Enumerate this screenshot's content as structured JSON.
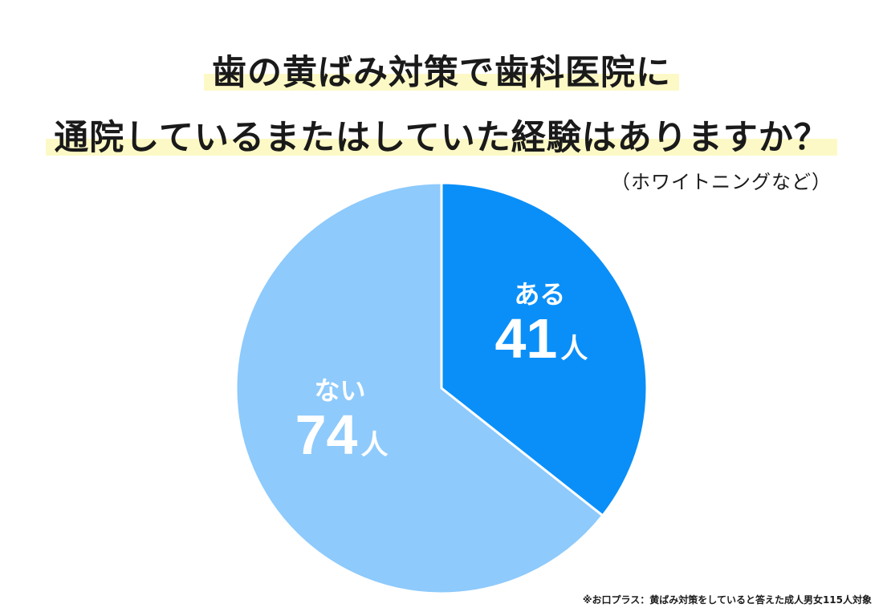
{
  "title": {
    "line1": "歯の黄ばみ対策で歯科医院に",
    "line2": "通院しているまたはしていた経験はありますか？"
  },
  "subtitle": "（ホワイトニングなど）",
  "footnote": "※お口プラス：黄ばみ対策をしていると答えた成人男女115人対象",
  "colors": {
    "slice_aru": "#0a8ff8",
    "slice_nai": "#8ecafc",
    "slice_border": "#ffffff",
    "label_text": "#ffffff",
    "highlight": "#fdf9c6"
  },
  "chart_data": {
    "type": "pie",
    "title": "歯の黄ばみ対策で歯科医院に通院しているまたはしていた経験はありますか？",
    "subtitle": "（ホワイトニングなど）",
    "unit": "人",
    "total": 115,
    "start": "12 o'clock",
    "direction": "clockwise",
    "slices": [
      {
        "label": "ある",
        "value": 41,
        "value_text": "41",
        "color": "#0a8ff8"
      },
      {
        "label": "ない",
        "value": 74,
        "value_text": "74",
        "color": "#8ecafc"
      }
    ]
  }
}
